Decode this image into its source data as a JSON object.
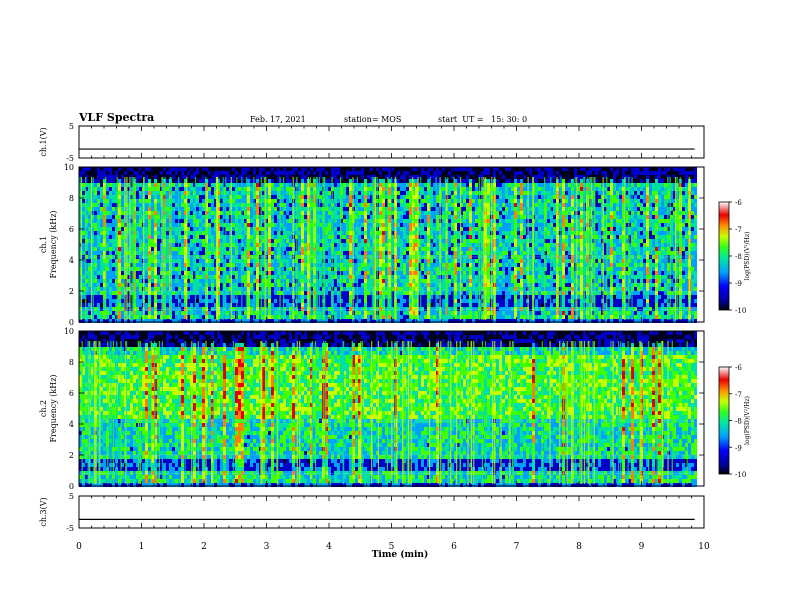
{
  "header": {
    "title": "VLF Spectra",
    "date": "Feb. 17, 2021",
    "station": "station= MOS",
    "start": "start  UT =   15: 30: 0"
  },
  "chart_data": [
    {
      "type": "line",
      "name": "ch1-voltage",
      "ylabel": "ch.1(V)",
      "ylim": [
        -5,
        5
      ],
      "yticks": [
        "5",
        "-5"
      ],
      "xlim": [
        0,
        10
      ],
      "series": [
        {
          "x": [
            0,
            9.85
          ],
          "values": [
            -2.2,
            -2.2
          ]
        }
      ]
    },
    {
      "type": "heatmap",
      "name": "ch1-spectrogram",
      "ylabel": "ch.1\nFrequency (kHz)",
      "ylim": [
        0,
        10
      ],
      "yticks": [
        "0",
        "2",
        "4",
        "6",
        "8",
        "10"
      ],
      "xlim": [
        0,
        10
      ],
      "data_end_min": 9.85,
      "colorbar": {
        "label": "log(PSD)(V²/Hz)",
        "range": [
          -10,
          -6
        ],
        "ticks": [
          "-6",
          "-7",
          "-8",
          "-9",
          "-10"
        ]
      }
    },
    {
      "type": "heatmap",
      "name": "ch2-spectrogram",
      "ylabel": "ch.2\nFrequency (kHz)",
      "ylim": [
        0,
        10
      ],
      "yticks": [
        "0",
        "2",
        "4",
        "6",
        "8",
        "10"
      ],
      "xlim": [
        0,
        10
      ],
      "data_end_min": 9.85,
      "colorbar": {
        "label": "log(PSD)(V²/Hz)",
        "range": [
          -10,
          -6
        ],
        "ticks": [
          "-6",
          "-7",
          "-8",
          "-9",
          "-10"
        ]
      }
    },
    {
      "type": "line",
      "name": "ch3-voltage",
      "ylabel": "ch.3(V)",
      "ylim": [
        -5,
        5
      ],
      "yticks": [
        "5",
        "-5"
      ],
      "xlim": [
        0,
        10
      ],
      "series": [
        {
          "x": [
            0,
            9.85
          ],
          "values": [
            -2.3,
            -2.3
          ]
        }
      ]
    }
  ],
  "x_axis": {
    "label": "Time  (min)",
    "range": [
      0,
      10
    ],
    "ticks": [
      "0",
      "1",
      "2",
      "3",
      "4",
      "5",
      "6",
      "7",
      "8",
      "9",
      "10"
    ]
  },
  "colors": {
    "scale": [
      "#000020",
      "#0000c8",
      "#00a0ff",
      "#00e0a0",
      "#40ff00",
      "#c8ff00",
      "#ff8000",
      "#e80000",
      "#ffffff"
    ]
  }
}
